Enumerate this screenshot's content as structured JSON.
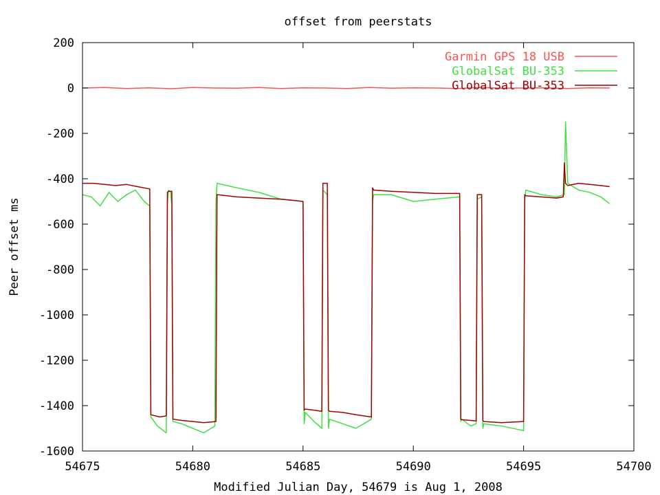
{
  "chart_data": {
    "type": "line",
    "title": "offset from peerstats",
    "xlabel": "Modified Julian Day, 54679 is Aug 1, 2008",
    "ylabel": "Peer offset ms",
    "xlim": [
      54675,
      54700
    ],
    "ylim": [
      -1600,
      200
    ],
    "xticks": [
      54675,
      54680,
      54685,
      54690,
      54695,
      54700
    ],
    "yticks": [
      200,
      0,
      -200,
      -400,
      -600,
      -800,
      -1000,
      -1200,
      -1400,
      -1600
    ],
    "grid": false,
    "legend_position": "top-right",
    "series": [
      {
        "name": "Garmin GPS 18 USB",
        "color": "#ff5050",
        "x": [
          54675.0,
          54676.0,
          54677.0,
          54678.0,
          54679.0,
          54680.0,
          54681.0,
          54682.0,
          54683.0,
          54684.0,
          54685.0,
          54686.0,
          54687.0,
          54688.0,
          54689.0,
          54690.0,
          54691.0,
          54692.0,
          54693.0,
          54694.0,
          54695.0,
          54696.0,
          54697.0,
          54698.0,
          54698.9
        ],
        "y": [
          0,
          2,
          -2,
          1,
          -3,
          2,
          0,
          -1,
          2,
          -2,
          1,
          0,
          -2,
          2,
          -1,
          1,
          0,
          -2,
          2,
          -1,
          0,
          1,
          -2,
          1,
          0
        ]
      },
      {
        "name": "GlobalSat BU-353",
        "color": "#40e040",
        "x": [
          54675.0,
          54675.4,
          54675.8,
          54676.2,
          54676.6,
          54677.0,
          54677.4,
          54677.8,
          54678.05,
          54678.1,
          54678.4,
          54678.8,
          54678.85,
          54678.9,
          54679.0,
          54679.05,
          54679.1,
          54679.5,
          54680.0,
          54680.5,
          54681.0,
          54681.05,
          54681.1,
          54682.0,
          54683.0,
          54684.0,
          54685.0,
          54685.05,
          54685.1,
          54685.5,
          54685.85,
          54685.9,
          54686.1,
          54686.15,
          54686.2,
          54686.8,
          54687.4,
          54688.1,
          54688.15,
          54688.2,
          54689.0,
          54690.0,
          54691.0,
          54692.1,
          54692.15,
          54692.2,
          54692.6,
          54692.85,
          54692.9,
          54693.1,
          54693.15,
          54693.2,
          54694.0,
          54695.0,
          54695.05,
          54695.1,
          54695.8,
          54696.5,
          54696.85,
          54696.9,
          54697.0,
          54697.5,
          54698.0,
          54698.5,
          54698.9
        ],
        "y": [
          -470,
          -480,
          -520,
          -460,
          -500,
          -470,
          -450,
          -500,
          -520,
          -1450,
          -1490,
          -1520,
          -510,
          -450,
          -460,
          -520,
          -1470,
          -1480,
          -1500,
          -1520,
          -1490,
          -500,
          -420,
          -440,
          -460,
          -490,
          -500,
          -1480,
          -1430,
          -1470,
          -1500,
          -450,
          -470,
          -1500,
          -1460,
          -1480,
          -1500,
          -1460,
          -500,
          -470,
          -470,
          -500,
          -490,
          -480,
          -1470,
          -1460,
          -1490,
          -1480,
          -490,
          -480,
          -1500,
          -1480,
          -1490,
          -1510,
          -500,
          -450,
          -470,
          -480,
          -470,
          -150,
          -420,
          -450,
          -460,
          -480,
          -510
        ]
      },
      {
        "name": "GlobalSat BU-353",
        "color": "#a00000",
        "x": [
          54675.0,
          54675.5,
          54676.0,
          54676.5,
          54677.0,
          54677.5,
          54678.05,
          54678.1,
          54678.5,
          54678.8,
          54678.85,
          54678.9,
          54679.05,
          54679.1,
          54679.5,
          54680.0,
          54680.5,
          54681.05,
          54681.1,
          54682.0,
          54683.0,
          54684.0,
          54684.5,
          54685.0,
          54685.05,
          54685.1,
          54685.5,
          54685.85,
          54685.9,
          54686.1,
          54686.15,
          54686.2,
          54686.8,
          54687.4,
          54688.1,
          54688.15,
          54688.2,
          54689.0,
          54690.0,
          54691.0,
          54692.1,
          54692.15,
          54692.2,
          54692.6,
          54692.85,
          54692.9,
          54693.1,
          54693.15,
          54693.2,
          54694.0,
          54695.0,
          54695.05,
          54695.1,
          54695.8,
          54696.5,
          54696.8,
          54696.85,
          54696.9,
          54697.0,
          54697.5,
          54698.0,
          54698.5,
          54698.9
        ],
        "y": [
          -420,
          -420,
          -425,
          -430,
          -425,
          -435,
          -445,
          -1440,
          -1450,
          -1445,
          -460,
          -455,
          -455,
          -1460,
          -1465,
          -1470,
          -1475,
          -1470,
          -470,
          -480,
          -485,
          -490,
          -495,
          -500,
          -1420,
          -1415,
          -1420,
          -1425,
          -420,
          -420,
          -1420,
          -1425,
          -1430,
          -1440,
          -1450,
          -440,
          -450,
          -455,
          -460,
          -465,
          -465,
          -1460,
          -1462,
          -1465,
          -1468,
          -470,
          -470,
          -1465,
          -1470,
          -1475,
          -1470,
          -470,
          -475,
          -480,
          -485,
          -480,
          -330,
          -420,
          -430,
          -420,
          -425,
          -430,
          -435
        ]
      }
    ]
  }
}
